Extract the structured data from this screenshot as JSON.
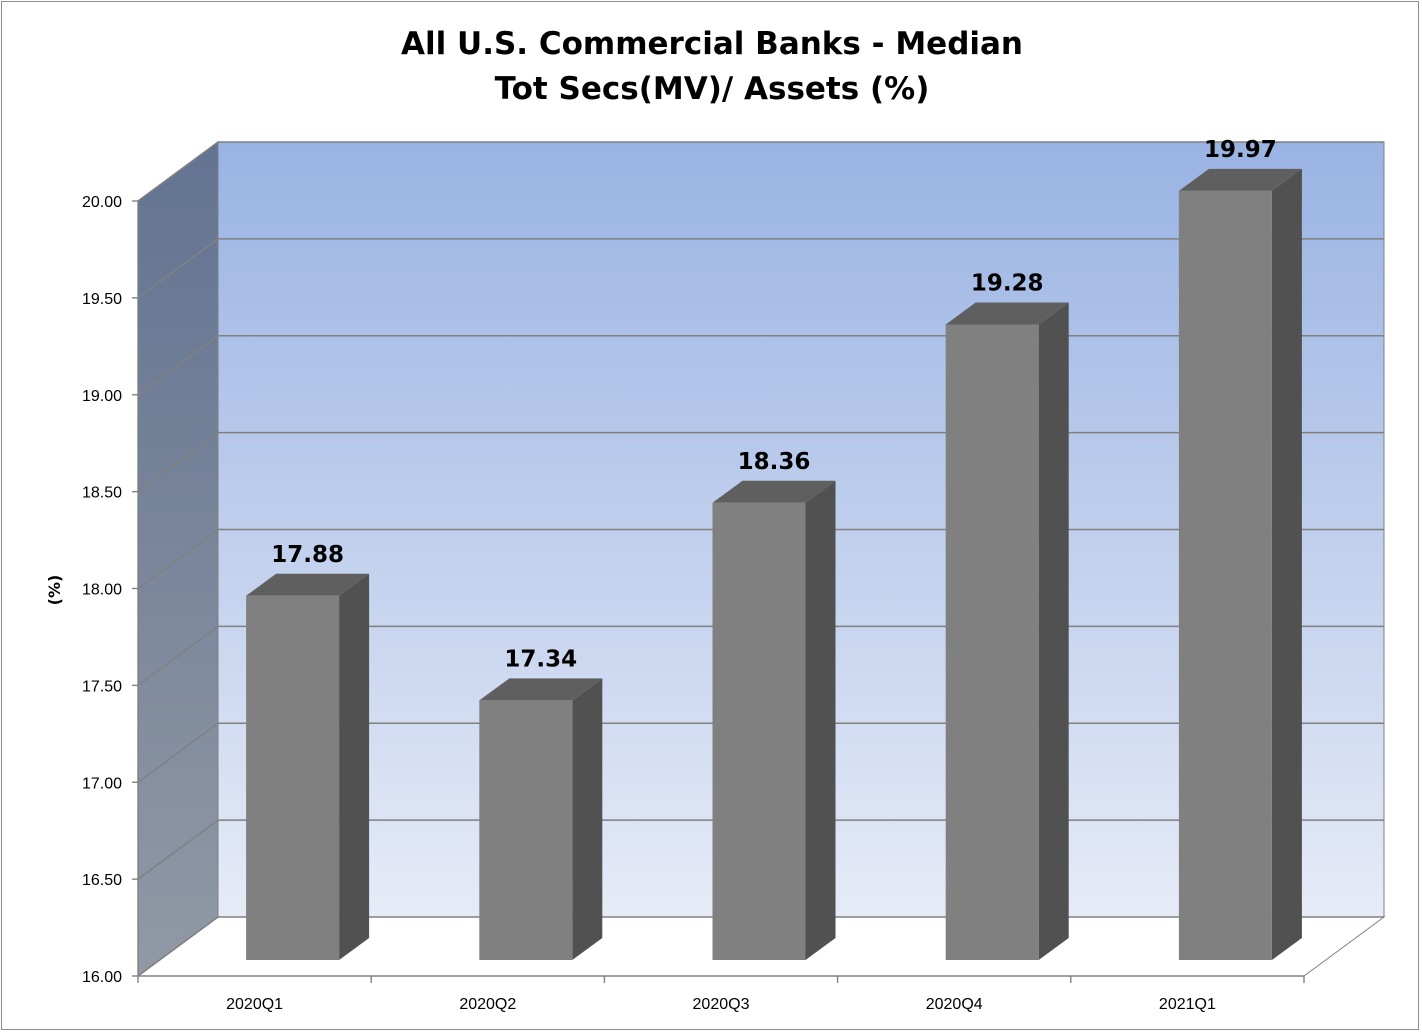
{
  "chart_data": {
    "type": "bar",
    "title_lines": [
      "All U.S. Commercial Banks - Median",
      "Tot Secs(MV)/ Assets (%)"
    ],
    "xlabel": "",
    "ylabel": "(%)",
    "categories": [
      "2020Q1",
      "2020Q2",
      "2020Q3",
      "2020Q4",
      "2021Q1"
    ],
    "values": [
      17.88,
      17.34,
      18.36,
      19.28,
      19.97
    ],
    "data_labels": [
      "17.88",
      "17.34",
      "18.36",
      "19.28",
      "19.97"
    ],
    "ylim": [
      16.0,
      20.0
    ],
    "yticks": [
      "16.00",
      "16.50",
      "17.00",
      "17.50",
      "18.00",
      "18.50",
      "19.00",
      "19.50",
      "20.00"
    ],
    "grid": true,
    "style": "3d-column",
    "colors": {
      "bar_front": "#808080",
      "bar_side": "#515151",
      "bar_top": "#5f5f5f",
      "back_wall_top": "#99b3e3",
      "back_wall_bottom": "#e6ebf7",
      "side_wall_top": "#627391",
      "side_wall_bottom": "#9199a5",
      "gridline": "#808080"
    }
  }
}
